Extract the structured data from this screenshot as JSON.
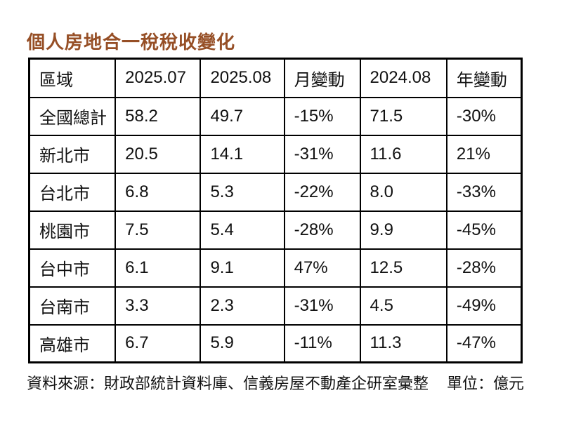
{
  "title": "個人房地合一稅稅收變化",
  "chart_data": {
    "type": "table",
    "title": "個人房地合一稅稅收變化",
    "columns": [
      "區域",
      "2025.07",
      "2025.08",
      "月變動",
      "2024.08",
      "年變動"
    ],
    "rows": [
      [
        "全國總計",
        "58.2",
        "49.7",
        "-15%",
        "71.5",
        "-30%"
      ],
      [
        "新北市",
        "20.5",
        "14.1",
        "-31%",
        "11.6",
        "21%"
      ],
      [
        "台北市",
        "6.8",
        "5.3",
        "-22%",
        "8.0",
        "-33%"
      ],
      [
        "桃園市",
        "7.5",
        "5.4",
        "-28%",
        "9.9",
        "-45%"
      ],
      [
        "台中市",
        "6.1",
        "9.1",
        "47%",
        "12.5",
        "-28%"
      ],
      [
        "台南市",
        "3.3",
        "2.3",
        "-31%",
        "4.5",
        "-49%"
      ],
      [
        "高雄市",
        "6.7",
        "5.9",
        "-11%",
        "11.3",
        "-47%"
      ]
    ],
    "unit_label": "單位：億元",
    "source_label": "資料來源：財政部統計資料庫、信義房屋不動產企研室彙整"
  },
  "colors": {
    "title": "#964f26",
    "text": "#111111",
    "border": "#000000",
    "background": "#ffffff"
  }
}
